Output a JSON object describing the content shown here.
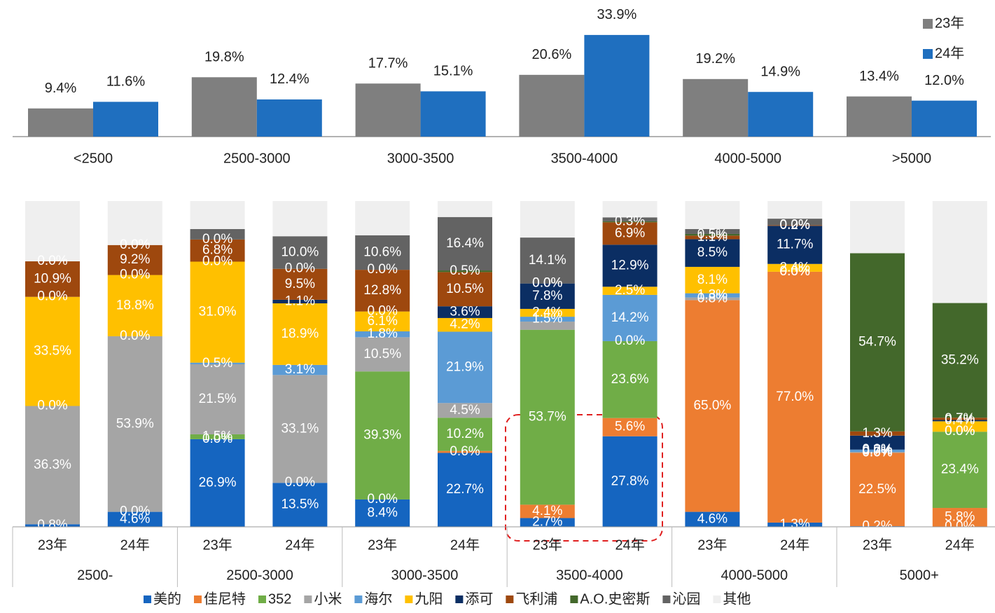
{
  "chart_data": [
    {
      "type": "bar",
      "categories": [
        "<2500",
        "2500-3000",
        "3000-3500",
        "3500-4000",
        "4000-5000",
        ">5000"
      ],
      "series": [
        {
          "name": "23年",
          "color": "#7f7f7f",
          "values": [
            9.4,
            19.8,
            17.7,
            20.6,
            19.2,
            13.4
          ],
          "value_labels": [
            "9.4%",
            "19.8%",
            "17.7%",
            "20.6%",
            "19.2%",
            "13.4%"
          ]
        },
        {
          "name": "24年",
          "color": "#1f6fbf",
          "values": [
            11.6,
            12.4,
            15.1,
            33.9,
            14.9,
            12.0
          ],
          "value_labels": [
            "11.6%",
            "12.4%",
            "15.1%",
            "33.9%",
            "14.9%",
            "12.0%"
          ]
        }
      ],
      "legend": "top-right"
    },
    {
      "type": "stacked_bar",
      "categories": [
        "23年",
        "24年",
        "23年",
        "24年",
        "23年",
        "24年",
        "23年",
        "24年",
        "23年",
        "24年",
        "23年",
        "24年"
      ],
      "groups": [
        "2500-",
        "2500-3000",
        "3000-3500",
        "3500-4000",
        "4000-5000",
        "5000+"
      ],
      "series": [
        {
          "name": "美的",
          "color": "#1565c0",
          "values": [
            0.8,
            4.6,
            26.9,
            13.5,
            8.4,
            22.7,
            2.7,
            27.8,
            4.6,
            1.3,
            0.2,
            0.0
          ],
          "value_labels": [
            "0.8%",
            "4.6%",
            "26.9%",
            "13.5%",
            "8.4%",
            "22.7%",
            "2.7%",
            "27.8%",
            "4.6%",
            "1.3%",
            "0.2%",
            "0.0%"
          ]
        },
        {
          "name": "佳尼特",
          "color": "#ed7d31",
          "values": [
            0,
            0.0,
            0.0,
            0.0,
            0.0,
            0.6,
            4.1,
            5.6,
            65.0,
            77.0,
            22.5,
            5.8
          ],
          "value_labels": [
            null,
            "0.0%",
            "0.0%",
            "0.0%",
            "0.0%",
            "0.6%",
            "4.1%",
            "5.6%",
            "65.0%",
            "77.0%",
            "22.5%",
            "5.8%"
          ]
        },
        {
          "name": "352",
          "color": "#70ad47",
          "values": [
            0,
            0,
            1.5,
            0,
            39.3,
            10.2,
            53.7,
            23.6,
            0,
            0.0,
            0.0,
            23.4
          ],
          "value_labels": [
            null,
            null,
            "1.5%",
            null,
            "39.3%",
            "10.2%",
            "53.7%",
            "23.6%",
            null,
            "0.0%",
            "0.0%",
            "23.4%"
          ]
        },
        {
          "name": "小米",
          "color": "#a5a5a5",
          "values": [
            36.3,
            53.9,
            21.5,
            33.1,
            10.5,
            4.5,
            2.5,
            0.0,
            0.8,
            0.0,
            0.3,
            0.0
          ],
          "value_labels": [
            "36.3%",
            "53.9%",
            "21.5%",
            "33.1%",
            "10.5%",
            "4.5%",
            null,
            "0.0%",
            "0.8%",
            "0.0%",
            "0.3%",
            "0.0%"
          ]
        },
        {
          "name": "海尔",
          "color": "#5b9bd5",
          "values": [
            0.0,
            0.0,
            0.5,
            3.1,
            1.8,
            21.9,
            1.5,
            14.2,
            1.3,
            0,
            0.7,
            0.0
          ],
          "value_labels": [
            "0.0%",
            "0.0%",
            "0.5%",
            "3.1%",
            "1.8%",
            "21.9%",
            "1.5%",
            "14.2%",
            "1.3%",
            null,
            "0.7%",
            "0.0%"
          ]
        },
        {
          "name": "九阳",
          "color": "#ffc000",
          "values": [
            33.5,
            18.8,
            31.0,
            18.9,
            6.1,
            4.2,
            2.4,
            2.5,
            8.1,
            2.4,
            0.0,
            3.2
          ],
          "value_labels": [
            "33.5%",
            "18.8%",
            "31.0%",
            "18.9%",
            "6.1%",
            "4.2%",
            "2.4%",
            "2.5%",
            "8.1%",
            "2.4%",
            "0.0%",
            null
          ]
        },
        {
          "name": "添可",
          "color": "#0b2e63",
          "values": [
            0.0,
            0.0,
            0.0,
            1.1,
            0.0,
            3.6,
            7.8,
            12.9,
            8.5,
            11.7,
            4.3,
            0.4
          ],
          "value_labels": [
            "0.0%",
            "0.0%",
            "0.0%",
            "1.1%",
            "0.0%",
            "3.6%",
            "7.8%",
            "12.9%",
            "8.5%",
            "11.7%",
            null,
            "0.4%"
          ]
        },
        {
          "name": "飞利浦",
          "color": "#9e480e",
          "values": [
            10.9,
            9.2,
            6.8,
            9.5,
            12.8,
            10.5,
            0.0,
            6.9,
            1.1,
            0.2,
            1.3,
            0.7
          ],
          "value_labels": [
            "10.9%",
            "9.2%",
            "6.8%",
            "9.5%",
            "12.8%",
            "10.5%",
            "0.0%",
            "6.9%",
            "1.1%",
            "0.2%",
            "1.3%",
            "0.7%"
          ]
        },
        {
          "name": "A.O.史密斯",
          "color": "#43682b",
          "values": [
            0.0,
            0.0,
            0.0,
            0.0,
            0.0,
            0.5,
            0.0,
            0.3,
            0.5,
            0.0,
            54.7,
            35.2
          ],
          "value_labels": [
            "0.0%",
            "0.0%",
            "0.0%",
            "0.0%",
            "0.0%",
            "0.5%",
            "0.0%",
            "0.3%",
            "0.5%",
            "0.0%",
            "54.7%",
            "35.2%"
          ]
        },
        {
          "name": "沁园",
          "color": "#636363",
          "values": [
            0,
            0,
            3.2,
            10.0,
            10.6,
            16.4,
            14.1,
            1.2,
            1.5,
            2.0,
            0,
            0
          ],
          "value_labels": [
            null,
            null,
            null,
            "10.0%",
            "10.6%",
            "16.4%",
            "14.1%",
            null,
            null,
            null,
            null,
            null
          ]
        },
        {
          "name": "其他",
          "color": "#efefef",
          "values": [
            18.5,
            13.5,
            8.6,
            10.8,
            10.5,
            4.9,
            11.2,
            5.0,
            8.6,
            5.4,
            16.0,
            31.3
          ]
        }
      ],
      "legend": "bottom"
    }
  ]
}
